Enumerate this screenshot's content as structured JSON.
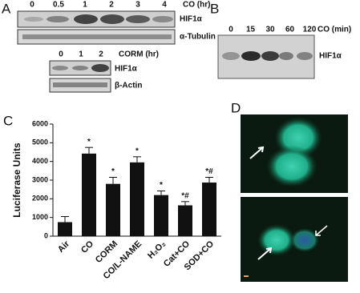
{
  "panel_a": {
    "label": "A",
    "blot1": {
      "lanes": [
        "0",
        "0.5",
        "1",
        "2",
        "3",
        "4"
      ],
      "treatment": "CO (hr)",
      "rows": [
        "HIF1α",
        "α-Tubulin"
      ]
    },
    "blot2": {
      "lanes": [
        "0",
        "1",
        "2"
      ],
      "treatment": "CORM (hr)",
      "rows": [
        "HIF1α",
        "β-Actin"
      ]
    }
  },
  "panel_b": {
    "label": "B",
    "lanes": [
      "0",
      "15",
      "30",
      "60",
      "120"
    ],
    "treatment": "CO (min)",
    "row": "HIF1α"
  },
  "chart_data": {
    "type": "bar",
    "panel_label": "C",
    "y_label": "Luciferase Units",
    "categories": [
      "Air",
      "CO",
      "CORM",
      "CO/L-NAME",
      "H₂O₂",
      "Cat+CO",
      "SOD+CO"
    ],
    "values": [
      750,
      4420,
      2800,
      3950,
      2200,
      1650,
      2870
    ],
    "errors": [
      300,
      330,
      350,
      300,
      220,
      200,
      280
    ],
    "annotations": [
      null,
      "*",
      "*",
      "*",
      "*",
      "*#",
      "*#"
    ],
    "color": "#111111",
    "ylim": [
      0,
      6000
    ],
    "yticks": [
      0,
      1000,
      2000,
      3000,
      4000,
      5000,
      6000
    ]
  },
  "panel_d": {
    "label": "D"
  }
}
